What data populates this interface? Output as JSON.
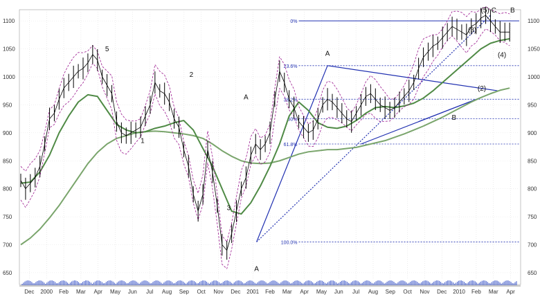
{
  "chart_data": {
    "type": "line",
    "title": "",
    "xlabel": "",
    "ylabel": "",
    "x_tick_labels": [
      "Dec",
      "2000",
      "Feb",
      "Mar",
      "Apr",
      "May",
      "Jun",
      "Jul",
      "Aug",
      "Sep",
      "Oct",
      "Nov",
      "Dec",
      "2001",
      "Feb",
      "Mar",
      "Apr",
      "May",
      "Jun",
      "Jul",
      "Aug",
      "Sep",
      "Oct",
      "Nov",
      "Dec",
      "2010",
      "Feb",
      "Mar",
      "Apr"
    ],
    "y_tick_labels_right": [
      "1100",
      "1050",
      "1000",
      "950",
      "900",
      "850",
      "800",
      "750",
      "700",
      "650"
    ],
    "y_tick_labels_left": [
      "1100",
      "1050",
      "1000",
      "950",
      "900",
      "850",
      "800",
      "750",
      "700",
      "650"
    ],
    "ylim": [
      640,
      1120
    ],
    "grid": true,
    "legend": "none",
    "colors": {
      "price": "#000000",
      "bands": "#9b1a8f",
      "ma_short": "#4f8a45",
      "ma_long": "#7aa56c",
      "trendlines": "#1f2fb0",
      "fib": "#1f2fb0",
      "volume": "#3a55c8"
    },
    "wave_labels": [
      {
        "text": "5",
        "x": 9,
        "y": 1046
      },
      {
        "text": "1",
        "x": 12.7,
        "y": 882
      },
      {
        "text": "2",
        "x": 17.8,
        "y": 1000
      },
      {
        "text": "3",
        "x": 21.7,
        "y": 762
      },
      {
        "text": "A",
        "x": 23.5,
        "y": 960
      },
      {
        "text": "A",
        "x": 24.6,
        "y": 653
      },
      {
        "text": "A",
        "x": 32,
        "y": 1038
      },
      {
        "text": "B",
        "x": 45.2,
        "y": 923
      },
      {
        "text": "(3)",
        "x": 47.1,
        "y": 1080
      },
      {
        "text": "(4)",
        "x": 50.2,
        "y": 1035
      },
      {
        "text": "(2)",
        "x": 48.1,
        "y": 975
      },
      {
        "text": "(5) C",
        "x": 48.8,
        "y": 1115
      },
      {
        "text": "B",
        "x": 51.3,
        "y": 1115
      }
    ],
    "fib_levels": [
      {
        "label": "0%",
        "value": 1100
      },
      {
        "label": "23.6%",
        "value": 1020
      },
      {
        "label": "38.2%",
        "value": 960
      },
      {
        "label": "50%",
        "value": 925
      },
      {
        "label": "61.8%",
        "value": 880
      },
      {
        "label": "100.0%",
        "value": 705
      }
    ],
    "series": [
      {
        "x": [
          0,
          0.5,
          1,
          1.5,
          2,
          2.5,
          3,
          3.5,
          4,
          4.5,
          5,
          5.5,
          6,
          6.5,
          7,
          7.5,
          8,
          8.5,
          9,
          9.5,
          10,
          10.5,
          11,
          11.5,
          12,
          12.5,
          13,
          13.5,
          14,
          14.5,
          15,
          15.5,
          16,
          16.5,
          17,
          17.5,
          18,
          18.5,
          19,
          19.5,
          20,
          20.5,
          21,
          21.5,
          22,
          22.5,
          23,
          23.5,
          24,
          24.5,
          25,
          25.5,
          26,
          26.5,
          27,
          27.5,
          28,
          28.5,
          29,
          29.5,
          30,
          30.5,
          31,
          31.5,
          32,
          32.5,
          33,
          33.5,
          34,
          34.5,
          35,
          35.5,
          36,
          36.5,
          37,
          37.5,
          38,
          38.5,
          39,
          39.5,
          40,
          40.5,
          41,
          41.5,
          42,
          42.5,
          43,
          43.5,
          44,
          44.5,
          45,
          45.5,
          46,
          46.5,
          47,
          47.5,
          48,
          48.5,
          49,
          49.5,
          50,
          50.5,
          51
        ],
        "values": [
          815,
          800,
          810,
          820,
          840,
          880,
          925,
          935,
          960,
          980,
          990,
          1000,
          1010,
          1015,
          1025,
          1040,
          1030,
          1000,
          985,
          970,
          920,
          900,
          895,
          900,
          905,
          910,
          930,
          950,
          990,
          975,
          970,
          955,
          925,
          910,
          870,
          840,
          790,
          760,
          790,
          870,
          830,
          770,
          700,
          690,
          720,
          760,
          800,
          820,
          860,
          880,
          870,
          880,
          900,
          960,
          1010,
          990,
          960,
          945,
          920,
          910,
          900,
          905,
          925,
          950,
          960,
          955,
          945,
          935,
          925,
          920,
          935,
          950,
          965,
          970,
          960,
          950,
          945,
          940,
          945,
          955,
          965,
          975,
          990,
          1015,
          1035,
          1045,
          1055,
          1060,
          1070,
          1080,
          1090,
          1085,
          1080,
          1075,
          1090,
          1095,
          1105,
          1110,
          1100,
          1090,
          1080,
          1080,
          1080
        ]
      },
      {
        "x": [
          0,
          1,
          2,
          3,
          4,
          5,
          6,
          7,
          8,
          9,
          10,
          11,
          12,
          13,
          14,
          15,
          16,
          17,
          18,
          19,
          20,
          21,
          22,
          23,
          24,
          25,
          26,
          27,
          28,
          29,
          30,
          31,
          32,
          33,
          34,
          35,
          36,
          37,
          38,
          39,
          40,
          41,
          42,
          43,
          44,
          45,
          46,
          47,
          48,
          49,
          50,
          51
        ],
        "values": [
          810,
          812,
          830,
          860,
          900,
          930,
          955,
          968,
          965,
          940,
          915,
          905,
          900,
          902,
          908,
          912,
          918,
          922,
          905,
          872,
          840,
          800,
          760,
          755,
          775,
          805,
          840,
          880,
          930,
          955,
          940,
          918,
          910,
          908,
          912,
          922,
          935,
          945,
          947,
          945,
          948,
          953,
          962,
          975,
          990,
          1005,
          1020,
          1035,
          1050,
          1060,
          1065,
          1068
        ]
      },
      {
        "x": [
          0,
          1,
          2,
          3,
          4,
          5,
          6,
          7,
          8,
          9,
          10,
          11,
          12,
          13,
          14,
          15,
          16,
          17,
          18,
          19,
          20,
          21,
          22,
          23,
          24,
          25,
          26,
          27,
          28,
          29,
          30,
          31,
          32,
          33,
          34,
          35,
          36,
          37,
          38,
          39,
          40,
          41,
          42,
          43,
          44,
          45,
          46,
          47,
          48,
          49,
          50,
          51
        ],
        "values": [
          700,
          712,
          728,
          748,
          770,
          795,
          820,
          845,
          865,
          880,
          890,
          895,
          900,
          902,
          903,
          902,
          900,
          898,
          895,
          890,
          880,
          868,
          858,
          850,
          846,
          845,
          846,
          850,
          856,
          862,
          866,
          868,
          870,
          870,
          872,
          874,
          878,
          882,
          886,
          892,
          898,
          905,
          912,
          920,
          928,
          937,
          946,
          955,
          963,
          970,
          976,
          980
        ]
      }
    ]
  }
}
